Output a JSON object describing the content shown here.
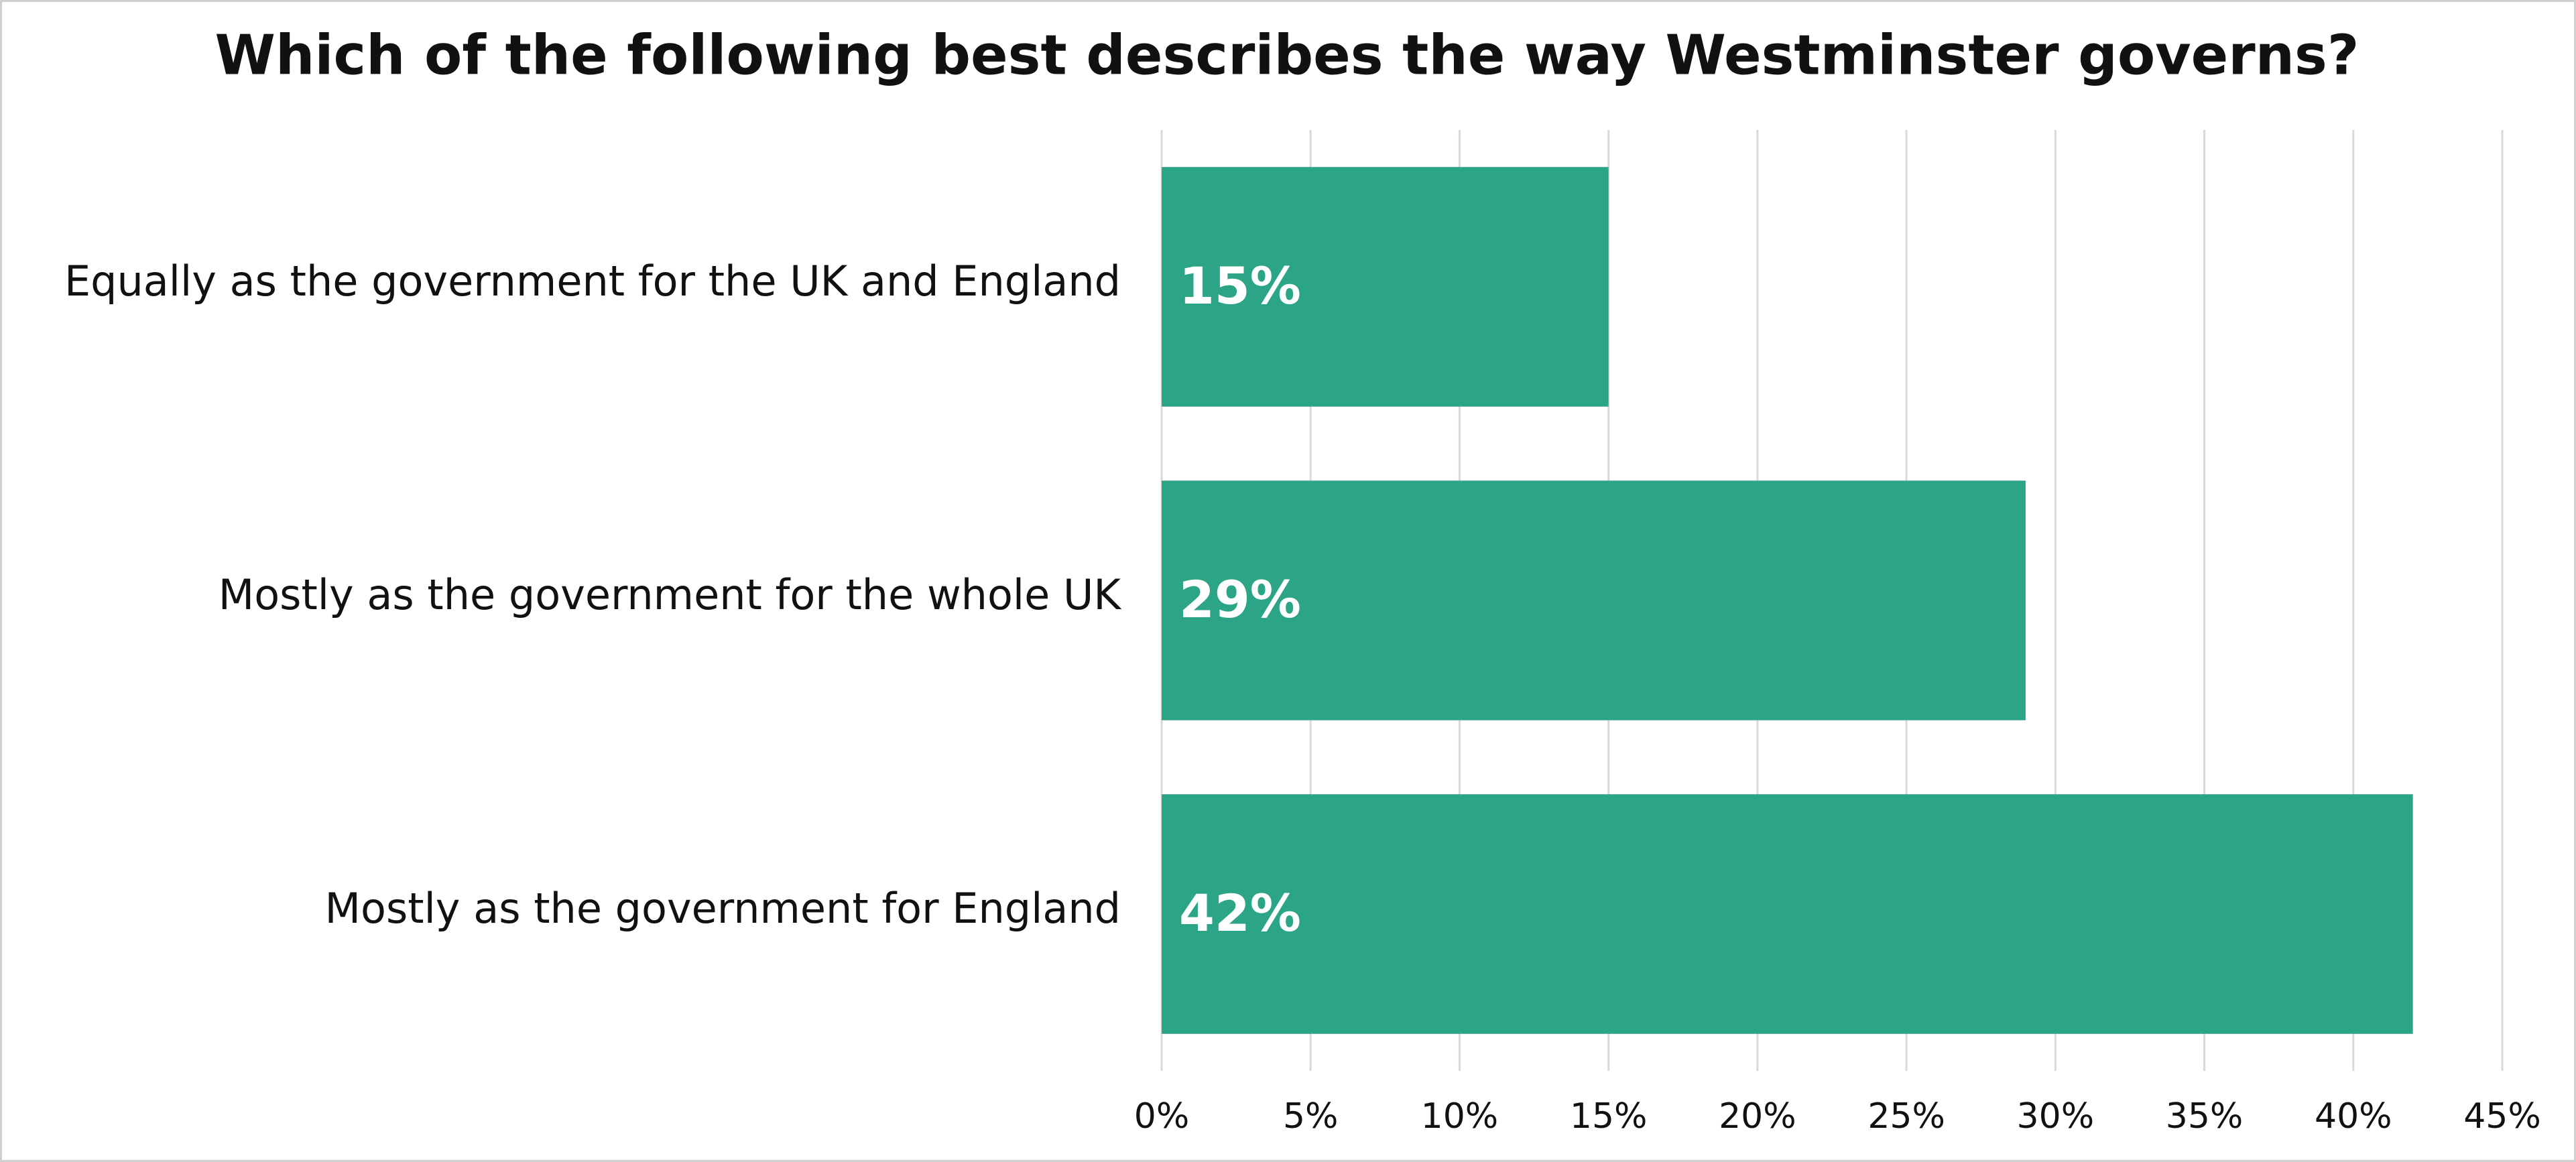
{
  "chart_data": {
    "type": "bar",
    "orientation": "horizontal",
    "title": "Which of the following best describes the way Westminster governs?",
    "categories": [
      "Equally as the government for the UK and England",
      "Mostly as the government for the whole UK",
      "Mostly as the government for England"
    ],
    "values": [
      15,
      29,
      42
    ],
    "value_labels": [
      "15%",
      "29%",
      "42%"
    ],
    "color": "#2ca586",
    "xlim": [
      0,
      45
    ],
    "xticks": [
      {
        "value": 0,
        "label": "0%"
      },
      {
        "value": 5,
        "label": "5%"
      },
      {
        "value": 10,
        "label": "10%"
      },
      {
        "value": 15,
        "label": "15%"
      },
      {
        "value": 20,
        "label": "20%"
      },
      {
        "value": 25,
        "label": "25%"
      },
      {
        "value": 30,
        "label": "30%"
      },
      {
        "value": 35,
        "label": "35%"
      },
      {
        "value": 40,
        "label": "40%"
      },
      {
        "value": 45,
        "label": "45%"
      }
    ],
    "grid": true
  }
}
